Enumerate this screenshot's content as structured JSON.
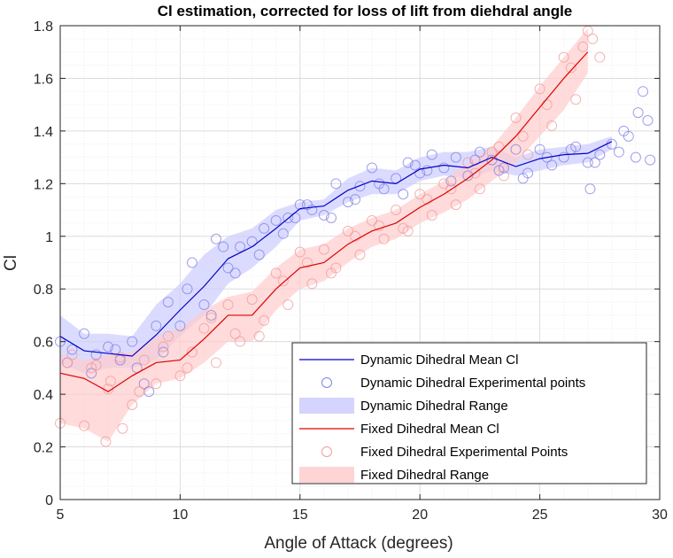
{
  "chart_data": {
    "type": "line",
    "title": "Cl estimation, corrected for loss of lift from diehdral angle",
    "xlabel": "Angle of Attack (degrees)",
    "ylabel": "Cl",
    "xlim": [
      5,
      30
    ],
    "ylim": [
      0,
      1.8
    ],
    "xticks": [
      5,
      10,
      15,
      20,
      25,
      30
    ],
    "yticks": [
      0,
      0.2,
      0.4,
      0.6,
      0.8,
      1,
      1.2,
      1.4,
      1.6,
      1.8
    ],
    "grid": true,
    "legend_position": "bottom-right",
    "colors": {
      "dynamic": "#0000cc",
      "dynamic_fill": "#ccccff",
      "fixed": "#dd0000",
      "fixed_fill": "#ffcccc",
      "dynamic_marker": "#8080e6",
      "fixed_marker": "#f29a9a"
    },
    "series": [
      {
        "name": "Dynamic Dihedral Mean Cl",
        "kind": "mean",
        "color_key": "dynamic",
        "x": [
          5,
          6,
          7,
          8,
          9,
          10,
          11,
          12,
          13,
          14,
          15,
          16,
          17,
          18,
          19,
          20,
          21,
          22,
          23,
          24,
          25,
          26,
          27,
          28
        ],
        "y": [
          0.62,
          0.565,
          0.555,
          0.545,
          0.625,
          0.72,
          0.81,
          0.915,
          0.96,
          1.03,
          1.105,
          1.115,
          1.175,
          1.21,
          1.2,
          1.255,
          1.27,
          1.26,
          1.3,
          1.265,
          1.295,
          1.31,
          1.315,
          1.36
        ]
      },
      {
        "name": "Dynamic Dihedral Experimental points",
        "kind": "points",
        "color_key": "dynamic",
        "x": [
          5,
          5.5,
          6,
          6.5,
          7,
          7.5,
          8,
          8.5,
          9,
          9.5,
          10,
          10.5,
          11,
          11.5,
          12,
          12.5,
          13,
          13.5,
          14,
          14.5,
          15,
          15.5,
          16,
          16.5,
          17,
          17.5,
          18,
          18.5,
          19,
          19.5,
          20,
          20.5,
          21,
          21.5,
          22,
          22.5,
          23,
          23.5,
          24,
          24.5,
          25,
          25.5,
          26,
          26.5,
          27,
          27.5,
          28,
          28.5,
          29,
          29.5,
          5.3,
          6.3,
          7.3,
          8.7,
          9.3,
          10.3,
          11.3,
          12.3,
          13.3,
          14.3,
          15.3,
          16.3,
          17.3,
          18.3,
          19.3,
          20.3,
          21.3,
          22.3,
          23.3,
          24.3,
          25.3,
          26.3,
          27.3,
          28.3,
          29.3,
          28.7,
          29.1,
          29.6,
          27.1,
          8.2,
          11.8,
          14.8,
          19.8
        ],
        "y": [
          0.6,
          0.57,
          0.63,
          0.55,
          0.58,
          0.53,
          0.6,
          0.44,
          0.66,
          0.75,
          0.66,
          0.9,
          0.74,
          0.99,
          0.88,
          0.96,
          0.98,
          1.03,
          1.06,
          1.07,
          1.12,
          1.1,
          1.08,
          1.2,
          1.13,
          1.19,
          1.26,
          1.18,
          1.22,
          1.28,
          1.24,
          1.31,
          1.26,
          1.3,
          1.23,
          1.32,
          1.29,
          1.26,
          1.33,
          1.24,
          1.33,
          1.27,
          1.3,
          1.34,
          1.28,
          1.31,
          1.35,
          1.4,
          1.3,
          1.44,
          0.52,
          0.48,
          0.57,
          0.41,
          0.56,
          0.8,
          0.7,
          0.86,
          0.93,
          1.01,
          1.12,
          1.07,
          1.14,
          1.2,
          1.16,
          1.25,
          1.21,
          1.29,
          1.25,
          1.22,
          1.3,
          1.33,
          1.28,
          1.32,
          1.55,
          1.38,
          1.47,
          1.29,
          1.18,
          0.5,
          0.96,
          1.07,
          1.27
        ]
      },
      {
        "name": "Dynamic Dihedral Range",
        "kind": "range",
        "color_key": "dynamic_fill",
        "x": [
          5,
          6,
          7,
          8,
          9,
          10,
          11,
          12,
          13,
          14,
          15,
          16,
          17,
          18,
          19,
          20,
          21,
          22,
          23,
          24,
          25,
          26,
          27,
          28
        ],
        "upper": [
          0.7,
          0.63,
          0.63,
          0.62,
          0.74,
          0.82,
          0.93,
          1.0,
          1.03,
          1.1,
          1.13,
          1.14,
          1.22,
          1.26,
          1.25,
          1.3,
          1.32,
          1.32,
          1.34,
          1.3,
          1.33,
          1.34,
          1.35,
          1.38
        ],
        "lower": [
          0.52,
          0.48,
          0.5,
          0.5,
          0.53,
          0.62,
          0.7,
          0.82,
          0.88,
          0.96,
          1.06,
          1.08,
          1.13,
          1.16,
          1.16,
          1.21,
          1.23,
          1.22,
          1.25,
          1.23,
          1.25,
          1.27,
          1.28,
          1.33
        ]
      },
      {
        "name": "Fixed Dihedral Mean Cl",
        "kind": "mean",
        "color_key": "fixed",
        "x": [
          5,
          6,
          7,
          8,
          9,
          10,
          11,
          12,
          13,
          14,
          15,
          16,
          17,
          18,
          19,
          20,
          21,
          22,
          23,
          24,
          25,
          26,
          27
        ],
        "y": [
          0.48,
          0.46,
          0.41,
          0.47,
          0.52,
          0.53,
          0.61,
          0.7,
          0.7,
          0.8,
          0.88,
          0.9,
          0.97,
          1.02,
          1.05,
          1.11,
          1.16,
          1.22,
          1.29,
          1.38,
          1.49,
          1.6,
          1.7
        ]
      },
      {
        "name": "Fixed Dihedral Experimental Points",
        "kind": "points",
        "color_key": "fixed",
        "x": [
          5,
          5.5,
          6,
          6.5,
          7,
          7.5,
          8,
          8.5,
          9,
          9.5,
          10,
          10.5,
          11,
          11.5,
          12,
          12.5,
          13,
          13.5,
          14,
          14.5,
          15,
          15.5,
          16,
          16.5,
          17,
          17.5,
          18,
          18.5,
          19,
          19.5,
          20,
          20.5,
          21,
          21.5,
          22,
          22.5,
          23,
          23.5,
          24,
          24.5,
          25,
          25.5,
          26,
          26.5,
          27,
          27.5,
          5.3,
          6.3,
          7.1,
          8.3,
          9.3,
          10.3,
          11.3,
          12.3,
          13.3,
          14.3,
          15.3,
          16.3,
          17.3,
          18.3,
          19.3,
          20.3,
          21.3,
          22.3,
          23.3,
          24.3,
          25.3,
          26.3,
          27.2,
          26.8,
          6.9,
          7.6
        ],
        "y": [
          0.29,
          0.55,
          0.28,
          0.51,
          0.42,
          0.54,
          0.36,
          0.53,
          0.44,
          0.62,
          0.47,
          0.56,
          0.65,
          0.52,
          0.74,
          0.6,
          0.76,
          0.68,
          0.86,
          0.74,
          0.94,
          0.82,
          0.95,
          0.88,
          1.02,
          0.93,
          1.06,
          0.99,
          1.1,
          1.02,
          1.16,
          1.08,
          1.2,
          1.12,
          1.28,
          1.18,
          1.32,
          1.23,
          1.45,
          1.31,
          1.56,
          1.42,
          1.68,
          1.52,
          1.78,
          1.68,
          0.52,
          0.5,
          0.45,
          0.41,
          0.58,
          0.5,
          0.69,
          0.63,
          0.62,
          0.83,
          0.9,
          0.86,
          1.0,
          1.04,
          1.03,
          1.14,
          1.18,
          1.24,
          1.34,
          1.38,
          1.5,
          1.64,
          1.75,
          1.72,
          0.22,
          0.27
        ]
      },
      {
        "name": "Fixed Dihedral Range",
        "kind": "range",
        "color_key": "fixed_fill",
        "x": [
          5,
          6,
          7,
          8,
          9,
          10,
          11,
          12,
          13,
          14,
          15,
          16,
          17,
          18,
          19,
          20,
          21,
          22,
          23,
          24,
          25,
          26,
          27
        ],
        "upper": [
          0.55,
          0.53,
          0.55,
          0.56,
          0.62,
          0.65,
          0.72,
          0.77,
          0.79,
          0.88,
          0.95,
          0.97,
          1.03,
          1.07,
          1.1,
          1.16,
          1.21,
          1.28,
          1.34,
          1.45,
          1.57,
          1.68,
          1.79
        ],
        "lower": [
          0.29,
          0.27,
          0.22,
          0.36,
          0.44,
          0.46,
          0.52,
          0.6,
          0.6,
          0.72,
          0.8,
          0.83,
          0.9,
          0.96,
          0.99,
          1.05,
          1.09,
          1.14,
          1.21,
          1.28,
          1.38,
          1.48,
          1.62
        ]
      }
    ],
    "legend": [
      "Dynamic Dihedral Mean Cl",
      "Dynamic Dihedral Experimental points",
      "Dynamic Dihedral Range",
      "Fixed Dihedral Mean Cl",
      "Fixed Dihedral Experimental Points",
      "Fixed Dihedral Range"
    ]
  }
}
